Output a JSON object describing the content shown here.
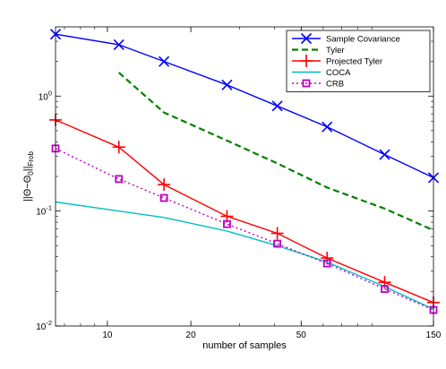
{
  "chart_data": {
    "type": "line",
    "title": "",
    "xlabel": "number of samples",
    "ylabel": "||Θ−Θ",
    "ylabel_sub": "0",
    "ylabel_tail": "||",
    "ylabel_norm": "Frob",
    "x_scale": "log",
    "y_scale": "log",
    "xlim": [
      6.5,
      150
    ],
    "ylim": [
      0.01,
      4
    ],
    "x_ticks": [
      10,
      20,
      50,
      150
    ],
    "x_tick_labels": [
      "10",
      "20",
      "50",
      "150"
    ],
    "y_ticks": [
      0.01,
      0.1,
      1
    ],
    "y_tick_labels": [
      {
        "base": "10",
        "exp": "-2"
      },
      {
        "base": "10",
        "exp": "-1"
      },
      {
        "base": "10",
        "exp": "0"
      }
    ],
    "grid": false,
    "legend_position": "top-right",
    "series": [
      {
        "name": "Sample Covariance",
        "color": "#0000ff",
        "line": "solid",
        "marker": "x",
        "x": [
          6.5,
          11,
          16,
          27,
          41,
          62,
          100,
          150
        ],
        "y": [
          3.45,
          2.8,
          2.0,
          1.25,
          0.82,
          0.54,
          0.31,
          0.195
        ]
      },
      {
        "name": "Tyler",
        "color": "#008000",
        "line": "dashed",
        "marker": "none",
        "x": [
          11,
          16,
          27,
          41,
          62,
          100,
          150
        ],
        "y": [
          1.6,
          0.72,
          0.41,
          0.26,
          0.16,
          0.105,
          0.068
        ]
      },
      {
        "name": "Projected Tyler",
        "color": "#ff0000",
        "line": "solid",
        "marker": "+",
        "x": [
          6.5,
          11,
          16,
          27,
          41,
          62,
          100,
          150
        ],
        "y": [
          0.62,
          0.36,
          0.17,
          0.09,
          0.064,
          0.039,
          0.024,
          0.016
        ]
      },
      {
        "name": "COCA",
        "color": "#00bfbf",
        "line": "solid",
        "marker": "none",
        "x": [
          6.5,
          16,
          27,
          41,
          62,
          100,
          150
        ],
        "y": [
          0.12,
          0.088,
          0.067,
          0.05,
          0.036,
          0.022,
          0.014
        ]
      },
      {
        "name": "CRB",
        "color": "#bf00bf",
        "line": "dotted",
        "marker": "square",
        "x": [
          6.5,
          11,
          16,
          27,
          41,
          62,
          100,
          150
        ],
        "y": [
          0.35,
          0.19,
          0.13,
          0.077,
          0.052,
          0.035,
          0.021,
          0.0138
        ]
      }
    ]
  }
}
